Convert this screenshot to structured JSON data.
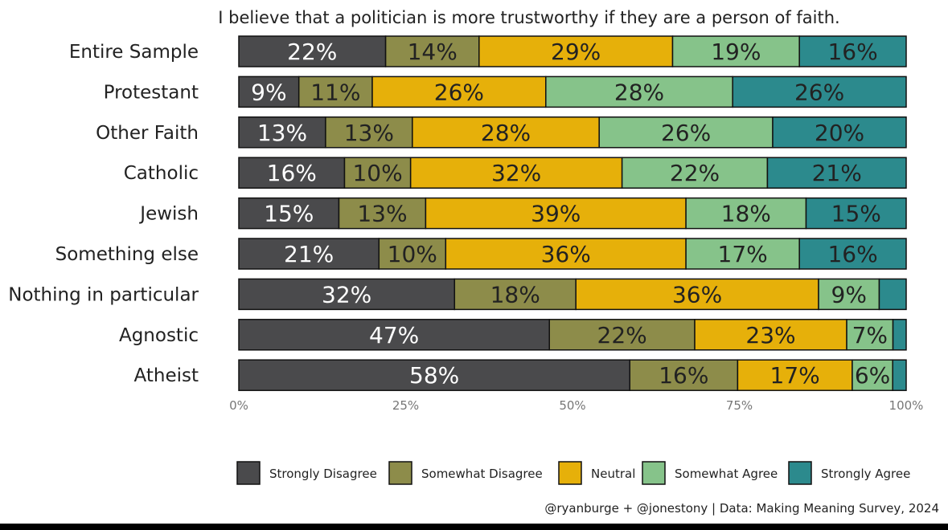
{
  "chart_data": {
    "type": "bar",
    "orientation": "horizontal",
    "stacked": true,
    "title": "I believe that a politician is more trustworthy if they are a person of faith.",
    "categories": [
      "Entire Sample",
      "Protestant",
      "Other Faith",
      "Catholic",
      "Jewish",
      "Something else",
      "Nothing in particular",
      "Agnostic",
      "Atheist"
    ],
    "series": [
      {
        "name": "Strongly Disagree",
        "color": "#4a4a4c",
        "values": [
          22,
          9,
          13,
          16,
          15,
          21,
          32,
          47,
          58
        ]
      },
      {
        "name": "Somewhat Disagree",
        "color": "#8d8c4a",
        "values": [
          14,
          11,
          13,
          10,
          13,
          10,
          18,
          22,
          16
        ]
      },
      {
        "name": "Neutral",
        "color": "#e6b00a",
        "values": [
          29,
          26,
          28,
          32,
          39,
          36,
          36,
          23,
          17
        ]
      },
      {
        "name": "Somewhat Agree",
        "color": "#86c38a",
        "values": [
          19,
          28,
          26,
          22,
          18,
          17,
          9,
          7,
          6
        ]
      },
      {
        "name": "Strongly Agree",
        "color": "#2c8a8d",
        "values": [
          16,
          26,
          20,
          21,
          15,
          16,
          4,
          2,
          2
        ]
      }
    ],
    "data_labels": [
      [
        "22%",
        "14%",
        "29%",
        "19%",
        "16%"
      ],
      [
        "9%",
        "11%",
        "26%",
        "28%",
        "26%"
      ],
      [
        "13%",
        "13%",
        "28%",
        "26%",
        "20%"
      ],
      [
        "16%",
        "10%",
        "32%",
        "22%",
        "21%"
      ],
      [
        "15%",
        "13%",
        "39%",
        "18%",
        "15%"
      ],
      [
        "21%",
        "10%",
        "36%",
        "17%",
        "16%"
      ],
      [
        "32%",
        "18%",
        "36%",
        "9%",
        ""
      ],
      [
        "47%",
        "22%",
        "23%",
        "7%",
        ""
      ],
      [
        "58%",
        "16%",
        "17%",
        "6%",
        ""
      ]
    ],
    "x_ticks": [
      "0%",
      "25%",
      "50%",
      "75%",
      "100%"
    ],
    "xlim": [
      0,
      100
    ],
    "grid": false,
    "legend_position": "bottom",
    "caption": "@ryanburge + @jonestony | Data: Making Meaning Survey, 2024"
  }
}
